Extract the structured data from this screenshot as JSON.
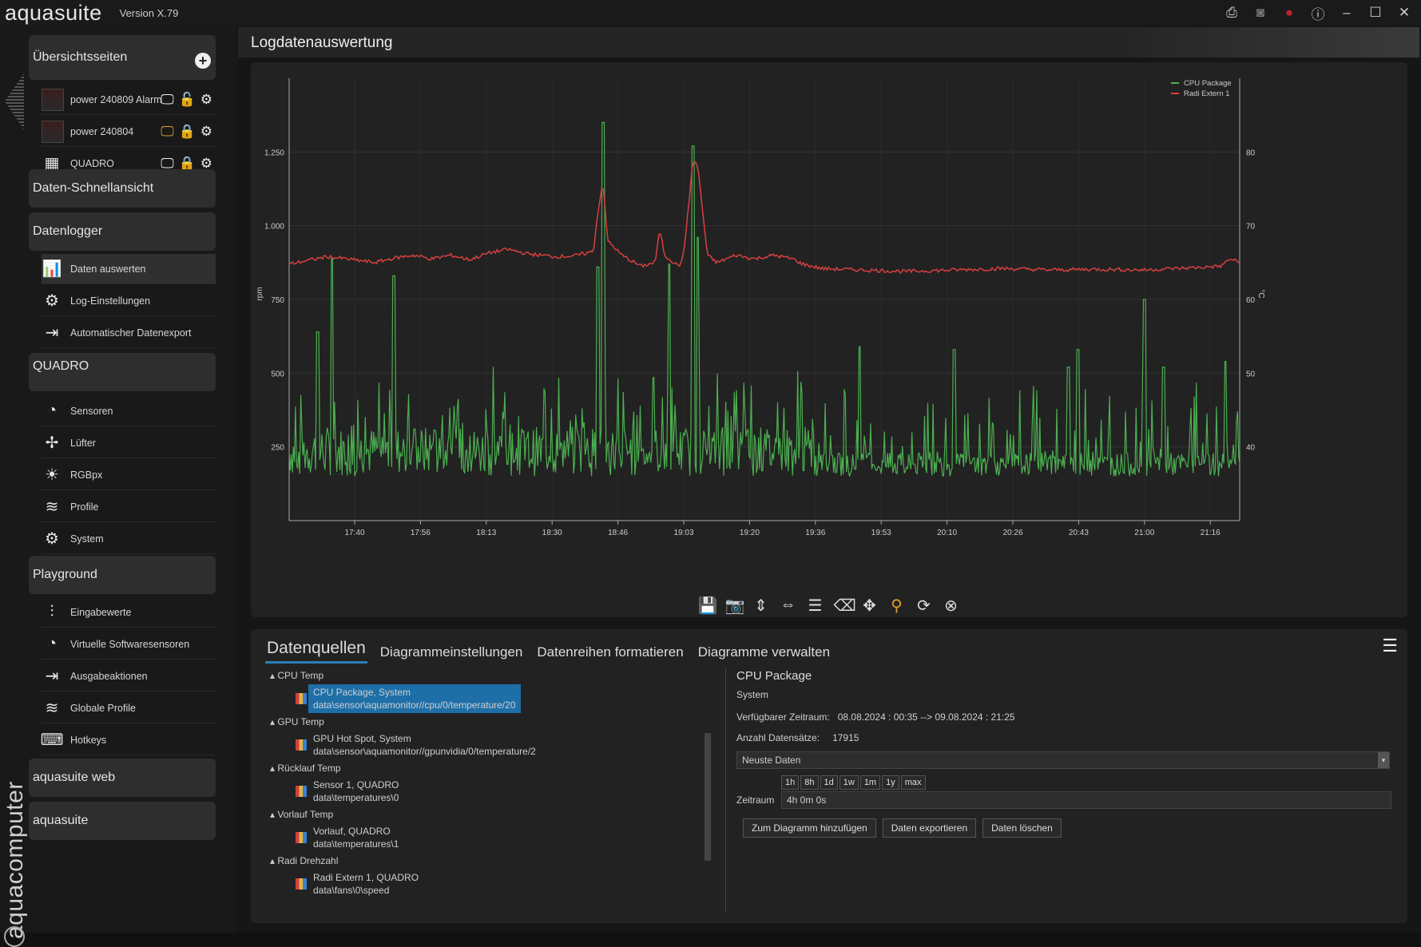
{
  "app": {
    "brand": "aquasuite",
    "version": "Version X.79",
    "vertical_brand": "aquacomputer"
  },
  "window_buttons": [
    "image-export-icon",
    "camera-icon",
    "record-icon",
    "info-icon",
    "minimize-icon",
    "maximize-icon",
    "close-icon"
  ],
  "sidebar": {
    "sections": [
      {
        "label": "Übersichtsseiten"
      },
      {
        "label": "Daten-Schnellansicht"
      },
      {
        "label": "Datenlogger"
      },
      {
        "label": "QUADRO"
      },
      {
        "label": "Playground"
      },
      {
        "label": "aquasuite web"
      },
      {
        "label": "aquasuite"
      }
    ],
    "overview_pages": [
      {
        "label": "power 240809 Alarm"
      },
      {
        "label": "power 240804"
      },
      {
        "label": "QUADRO"
      }
    ],
    "datalogger_items": [
      {
        "label": "Daten auswerten"
      },
      {
        "label": "Log-Einstellungen"
      },
      {
        "label": "Automatischer Datenexport"
      }
    ],
    "quadro_items": [
      {
        "label": "Sensoren"
      },
      {
        "label": "Lüfter"
      },
      {
        "label": "RGBpx"
      },
      {
        "label": "Profile"
      },
      {
        "label": "System"
      }
    ],
    "playground_items": [
      {
        "label": "Eingabewerte"
      },
      {
        "label": "Virtuelle Softwaresensoren"
      },
      {
        "label": "Ausgabeaktionen"
      },
      {
        "label": "Globale Profile"
      },
      {
        "label": "Hotkeys"
      }
    ]
  },
  "page_title": "Logdatenauswertung",
  "chart_data": {
    "type": "line",
    "x_ticks": [
      "17:40",
      "17:56",
      "18:13",
      "18:30",
      "18:46",
      "19:03",
      "19:20",
      "19:36",
      "19:53",
      "20:10",
      "20:26",
      "20:43",
      "21:00",
      "21:16"
    ],
    "y_left_label": "rpm",
    "y_left_ticks": [
      "250",
      "500",
      "750",
      "1.000",
      "1.250"
    ],
    "y_left_lim": [
      0,
      1500
    ],
    "y_right_label": "°C",
    "y_right_ticks": [
      "40",
      "50",
      "60",
      "70",
      "80"
    ],
    "y_right_lim": [
      30,
      90
    ],
    "legend_position": "top-right",
    "series": [
      {
        "name": "CPU Package",
        "color": "#4caf50",
        "axis": "left"
      },
      {
        "name": "Radi Extern 1",
        "color": "#d84040",
        "axis": "right"
      }
    ],
    "red_profile": [
      [
        0,
        64.8
      ],
      [
        0.02,
        65.3
      ],
      [
        0.04,
        65.8
      ],
      [
        0.06,
        65.5
      ],
      [
        0.09,
        65.0
      ],
      [
        0.11,
        65.6
      ],
      [
        0.13,
        66
      ],
      [
        0.15,
        65.5
      ],
      [
        0.17,
        66.0
      ],
      [
        0.19,
        65.4
      ],
      [
        0.21,
        66.3
      ],
      [
        0.23,
        66.8
      ],
      [
        0.25,
        66.2
      ],
      [
        0.28,
        65.8
      ],
      [
        0.3,
        65.9
      ],
      [
        0.32,
        66.5
      ],
      [
        0.325,
        72
      ],
      [
        0.33,
        76
      ],
      [
        0.335,
        68
      ],
      [
        0.35,
        66
      ],
      [
        0.37,
        64.5
      ],
      [
        0.385,
        65
      ],
      [
        0.39,
        69.5
      ],
      [
        0.395,
        66
      ],
      [
        0.41,
        64.5
      ],
      [
        0.415,
        66
      ],
      [
        0.425,
        79
      ],
      [
        0.43,
        78
      ],
      [
        0.44,
        66
      ],
      [
        0.45,
        65
      ],
      [
        0.47,
        66
      ],
      [
        0.49,
        65.5
      ],
      [
        0.51,
        66
      ],
      [
        0.53,
        65.5
      ],
      [
        0.54,
        64.8
      ],
      [
        0.56,
        64.2
      ],
      [
        0.6,
        64.0
      ],
      [
        0.65,
        63.8
      ],
      [
        0.7,
        64.0
      ],
      [
        0.75,
        64.2
      ],
      [
        0.8,
        64.0
      ],
      [
        0.85,
        64.1
      ],
      [
        0.9,
        64.0
      ],
      [
        0.95,
        64.3
      ],
      [
        0.98,
        64.5
      ],
      [
        0.99,
        65.5
      ],
      [
        1.0,
        65
      ]
    ],
    "green_spikes": [
      [
        0.03,
        640
      ],
      [
        0.045,
        890
      ],
      [
        0.11,
        830
      ],
      [
        0.325,
        860
      ],
      [
        0.33,
        1350
      ],
      [
        0.4,
        870
      ],
      [
        0.425,
        1270
      ],
      [
        0.43,
        960
      ],
      [
        0.6,
        590
      ],
      [
        0.7,
        580
      ],
      [
        0.82,
        520
      ],
      [
        0.83,
        580
      ],
      [
        0.9,
        750
      ],
      [
        0.92,
        520
      ],
      [
        0.985,
        540
      ]
    ]
  },
  "toolbar_icons": [
    "save-icon",
    "camera-icon",
    "fit-vertical-icon",
    "fit-horizontal-icon",
    "notes-icon",
    "clear-icon",
    "move-icon",
    "zoom-icon",
    "refresh-icon",
    "close-circle-icon"
  ],
  "tabs": [
    "Datenquellen",
    "Diagrammeinstellungen",
    "Datenreihen formatieren",
    "Diagramme verwalten"
  ],
  "tree": [
    {
      "group": "CPU Temp",
      "name": "CPU Package, System",
      "path": "data\\sensor\\aquamonitor//cpu/0/temperature/20",
      "selected": true
    },
    {
      "group": "GPU Temp",
      "name": "GPU Hot Spot, System",
      "path": "data\\sensor\\aquamonitor//gpunvidia/0/temperature/2",
      "selected": false
    },
    {
      "group": "Rücklauf Temp",
      "name": "Sensor 1, QUADRO",
      "path": "data\\temperatures\\0",
      "selected": false
    },
    {
      "group": "Vorlauf Temp",
      "name": "Vorlauf, QUADRO",
      "path": "data\\temperatures\\1",
      "selected": false
    },
    {
      "group": "Radi Drehzahl",
      "name": "Radi Extern 1, QUADRO",
      "path": "data\\fans\\0\\speed",
      "selected": false
    }
  ],
  "detail": {
    "title": "CPU Package",
    "subtitle": "System",
    "period_label": "Verfügbarer Zeitraum:",
    "period_value": "08.08.2024 : 00:35 --> 09.08.2024 : 21:25",
    "count_label": "Anzahl Datensätze:",
    "count_value": "17915",
    "dropdown_value": "Neuste Daten",
    "zeitraum_label": "Zeitraum",
    "time_buttons": [
      "1h",
      "8h",
      "1d",
      "1w",
      "1m",
      "1y",
      "max"
    ],
    "zeitraum_value": "4h 0m 0s",
    "buttons": [
      "Zum Diagramm hinzufügen",
      "Daten exportieren",
      "Daten löschen"
    ]
  }
}
